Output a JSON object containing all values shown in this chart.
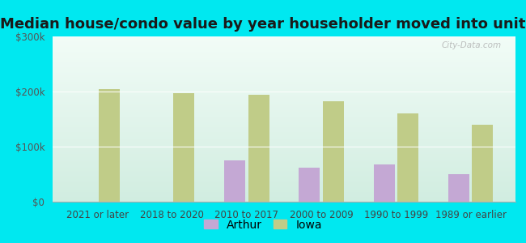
{
  "title": "Median house/condo value by year householder moved into unit",
  "categories": [
    "2021 or later",
    "2018 to 2020",
    "2010 to 2017",
    "2000 to 2009",
    "1990 to 1999",
    "1989 or earlier"
  ],
  "arthur_values": [
    0,
    0,
    75000,
    62000,
    68000,
    50000
  ],
  "iowa_values": [
    205000,
    197000,
    194000,
    182000,
    161000,
    140000
  ],
  "arthur_color": "#c4a8d4",
  "iowa_color": "#c0cc88",
  "background_outer": "#00e8f0",
  "ylim": [
    0,
    300000
  ],
  "yticks": [
    0,
    100000,
    200000,
    300000
  ],
  "ytick_labels": [
    "$0",
    "$100k",
    "$200k",
    "$300k"
  ],
  "watermark": "City-Data.com",
  "legend_labels": [
    "Arthur",
    "Iowa"
  ],
  "title_fontsize": 13,
  "tick_fontsize": 8.5,
  "legend_fontsize": 10,
  "bar_width": 0.28
}
